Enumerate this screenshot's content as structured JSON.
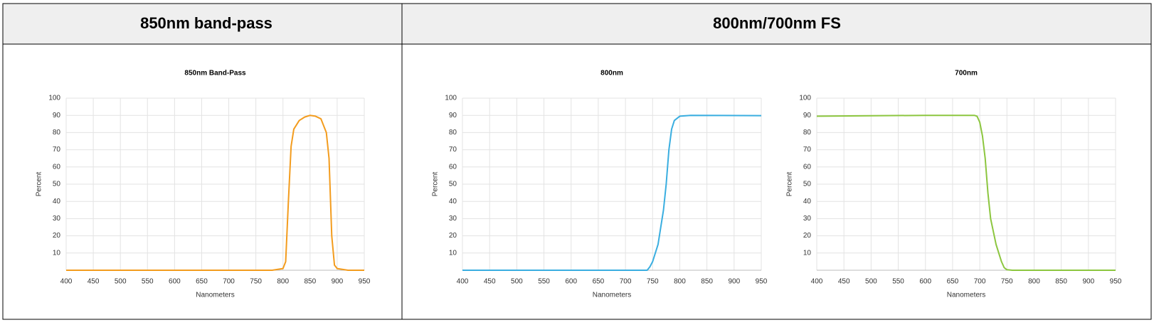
{
  "table": {
    "headers": [
      "850nm band-pass",
      "800nm/700nm FS"
    ]
  },
  "chart_data": [
    {
      "type": "line",
      "title": "850nm Band-Pass",
      "x_label": "Nanometers",
      "y_label": "Percent",
      "color": "#f39c1e",
      "x": [
        400,
        500,
        600,
        700,
        780,
        800,
        805,
        810,
        815,
        820,
        830,
        840,
        850,
        860,
        870,
        880,
        885,
        890,
        895,
        900,
        920,
        950
      ],
      "values": [
        0,
        0,
        0,
        0,
        0,
        1,
        5,
        40,
        72,
        82,
        87,
        89,
        90,
        89.5,
        88,
        80,
        65,
        20,
        3,
        1,
        0,
        0
      ],
      "xlim": [
        400,
        950
      ],
      "ylim": [
        0,
        100
      ],
      "xticks": [
        400,
        450,
        500,
        550,
        600,
        650,
        700,
        750,
        800,
        850,
        900,
        950
      ],
      "yticks": [
        10,
        20,
        30,
        40,
        50,
        60,
        70,
        80,
        90,
        100
      ],
      "grid": true
    },
    {
      "type": "line",
      "title": "800nm",
      "x_label": "Nanometers",
      "y_label": "Percent",
      "color": "#3aaee0",
      "x": [
        400,
        500,
        600,
        700,
        740,
        745,
        750,
        760,
        770,
        775,
        780,
        785,
        790,
        800,
        820,
        950
      ],
      "values": [
        0,
        0,
        0,
        0,
        0,
        2,
        5,
        15,
        35,
        50,
        70,
        82,
        87,
        89.5,
        90,
        89.8
      ],
      "xlim": [
        400,
        950
      ],
      "ylim": [
        0,
        100
      ],
      "xticks": [
        400,
        450,
        500,
        550,
        600,
        650,
        700,
        750,
        800,
        850,
        900,
        950
      ],
      "yticks": [
        10,
        20,
        30,
        40,
        50,
        60,
        70,
        80,
        90,
        100
      ],
      "grid": true
    },
    {
      "type": "line",
      "title": "700nm",
      "x_label": "Nanometers",
      "y_label": "Percent",
      "color": "#8cc63f",
      "x": [
        400,
        600,
        690,
        695,
        700,
        705,
        710,
        715,
        720,
        730,
        740,
        745,
        750,
        760,
        950
      ],
      "values": [
        89.5,
        90,
        90,
        89.5,
        86,
        78,
        65,
        45,
        30,
        15,
        5,
        1.5,
        0.3,
        0,
        0
      ],
      "xlim": [
        400,
        950
      ],
      "ylim": [
        0,
        100
      ],
      "xticks": [
        400,
        450,
        500,
        550,
        600,
        650,
        700,
        750,
        800,
        850,
        900,
        950
      ],
      "yticks": [
        10,
        20,
        30,
        40,
        50,
        60,
        70,
        80,
        90,
        100
      ],
      "grid": true
    }
  ]
}
